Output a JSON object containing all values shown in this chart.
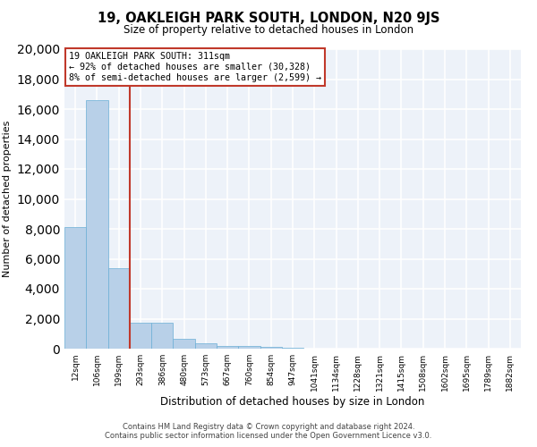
{
  "title": "19, OAKLEIGH PARK SOUTH, LONDON, N20 9JS",
  "subtitle": "Size of property relative to detached houses in London",
  "xlabel": "Distribution of detached houses by size in London",
  "ylabel": "Number of detached properties",
  "categories": [
    "12sqm",
    "106sqm",
    "199sqm",
    "293sqm",
    "386sqm",
    "480sqm",
    "573sqm",
    "667sqm",
    "760sqm",
    "854sqm",
    "947sqm",
    "1041sqm",
    "1134sqm",
    "1228sqm",
    "1321sqm",
    "1415sqm",
    "1508sqm",
    "1602sqm",
    "1695sqm",
    "1789sqm",
    "1882sqm"
  ],
  "values": [
    8100,
    16600,
    5350,
    1750,
    1750,
    650,
    350,
    200,
    150,
    100,
    30,
    15,
    8,
    4,
    3,
    2,
    1,
    1,
    1,
    0,
    0
  ],
  "bar_color": "#b8d0e8",
  "bar_edge_color": "#6aaed6",
  "vline_color": "#c0392b",
  "annotation_title": "19 OAKLEIGH PARK SOUTH: 311sqm",
  "annotation_line1": "← 92% of detached houses are smaller (30,328)",
  "annotation_line2": "8% of semi-detached houses are larger (2,599) →",
  "annotation_box_edgecolor": "#c0392b",
  "ylim": [
    0,
    20000
  ],
  "yticks": [
    0,
    2000,
    4000,
    6000,
    8000,
    10000,
    12000,
    14000,
    16000,
    18000,
    20000
  ],
  "background_color": "#edf2f9",
  "grid_color": "#ffffff",
  "footer1": "Contains HM Land Registry data © Crown copyright and database right 2024.",
  "footer2": "Contains public sector information licensed under the Open Government Licence v3.0."
}
